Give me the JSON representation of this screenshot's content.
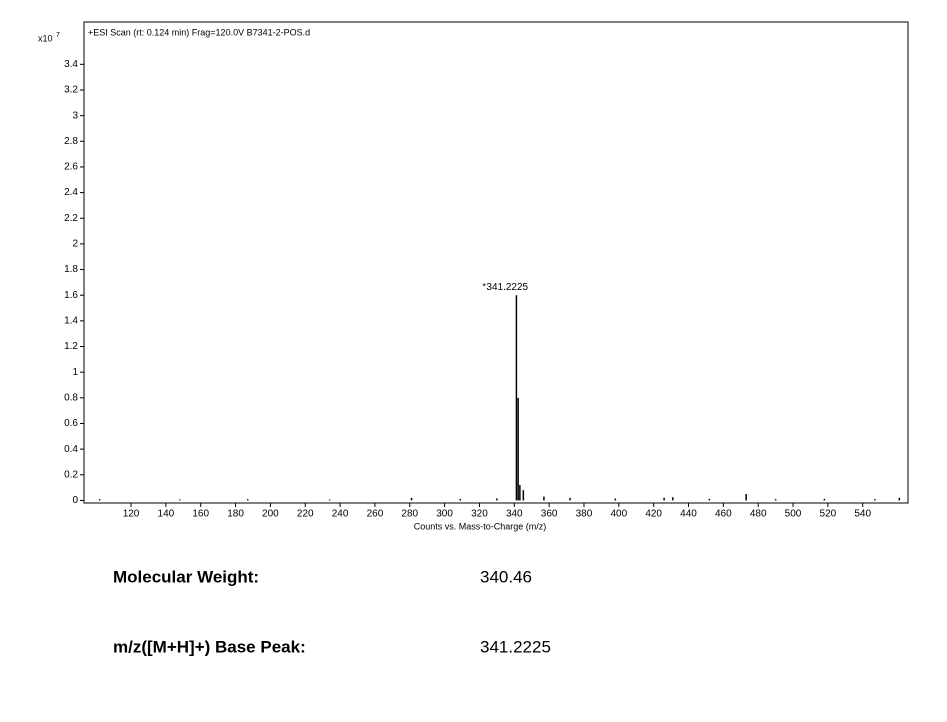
{
  "chart_data": {
    "type": "spectrum",
    "title": "+ESI Scan (rt: 0.124 min) Frag=120.0V B7341-2-POS.d",
    "y_multiplier": "x10",
    "y_exponent": "7",
    "x_label": "Counts vs. Mass-to-Charge (m/z)",
    "x": [
      341.2225,
      342.2,
      343.2,
      345.2,
      473.1,
      102,
      148,
      187,
      234,
      281,
      309,
      330,
      357,
      372,
      398,
      426,
      431,
      452,
      490,
      518,
      547,
      561
    ],
    "values": [
      1.6,
      0.8,
      0.12,
      0.08,
      0.05,
      0.01,
      0.008,
      0.01,
      0.007,
      0.02,
      0.012,
      0.015,
      0.03,
      0.02,
      0.015,
      0.02,
      0.025,
      0.012,
      0.01,
      0.012,
      0.01,
      0.02
    ],
    "color": "#000000",
    "xlim": [
      93,
      566
    ],
    "ylim": [
      -0.02,
      3.73
    ],
    "xticks": [
      120,
      140,
      160,
      180,
      200,
      220,
      240,
      260,
      280,
      300,
      320,
      340,
      360,
      380,
      400,
      420,
      440,
      460,
      480,
      500,
      520,
      540
    ],
    "yticks": [
      0,
      0.2,
      0.4,
      0.6,
      0.8,
      1,
      1.2,
      1.4,
      1.6,
      1.8,
      2,
      2.2,
      2.4,
      2.6,
      2.8,
      3,
      3.2,
      3.4
    ]
  },
  "info": [
    {
      "label": "Molecular Weight:",
      "value": "340.46"
    },
    {
      "label": "m/z([M+H]+) Base Peak:",
      "value": "341.2225"
    }
  ]
}
